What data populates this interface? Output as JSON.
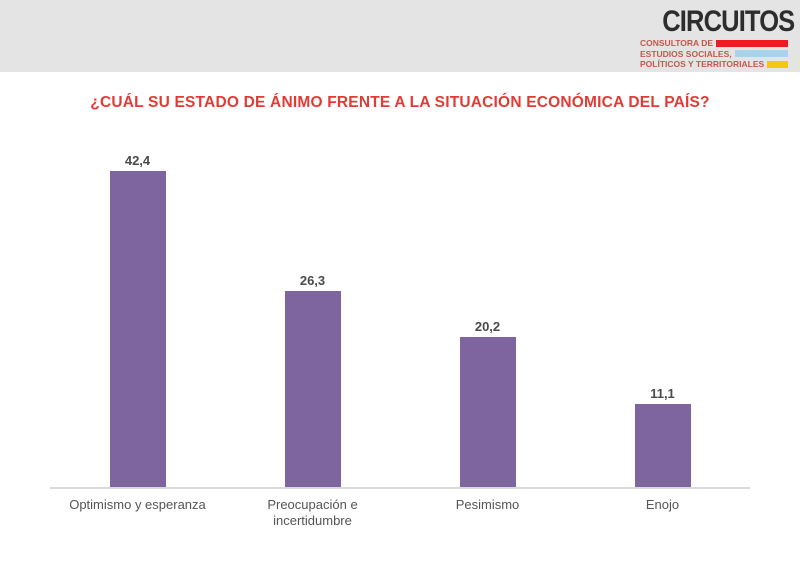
{
  "header": {
    "brand": {
      "name": "CIRCUITOS",
      "name_color": "#2d2d2d",
      "tagline_color": "#c4584c",
      "tagline_lines": [
        {
          "text": "CONSULTORA DE",
          "bar_color": "#ed1c24"
        },
        {
          "text": "ESTUDIOS SOCIALES,",
          "bar_color": "#a8d3ea"
        },
        {
          "text": "POLÍTICOS Y TERRITORIALES",
          "bar_color": "#f3c80e"
        }
      ]
    }
  },
  "chart_data": {
    "type": "bar",
    "title": "¿CUÁL SU ESTADO DE ÁNIMO FRENTE A LA SITUACIÓN ECONÓMICA DEL PAÍS?",
    "title_color": "#e23b36",
    "categories": [
      "Optimismo y esperanza",
      "Preocupación e incertidumbre",
      "Pesimismo",
      "Enojo"
    ],
    "values": [
      42.4,
      26.3,
      20.2,
      11.1
    ],
    "value_labels": [
      "42,4",
      "26,3",
      "20,2",
      "11,1"
    ],
    "bar_color": "#7e65a0",
    "xlabel": "",
    "ylabel": "",
    "ylim": [
      0,
      45
    ],
    "grid": false,
    "legend": "none",
    "data_label_position": "above",
    "axis_line_color": "#d9d9d9"
  }
}
